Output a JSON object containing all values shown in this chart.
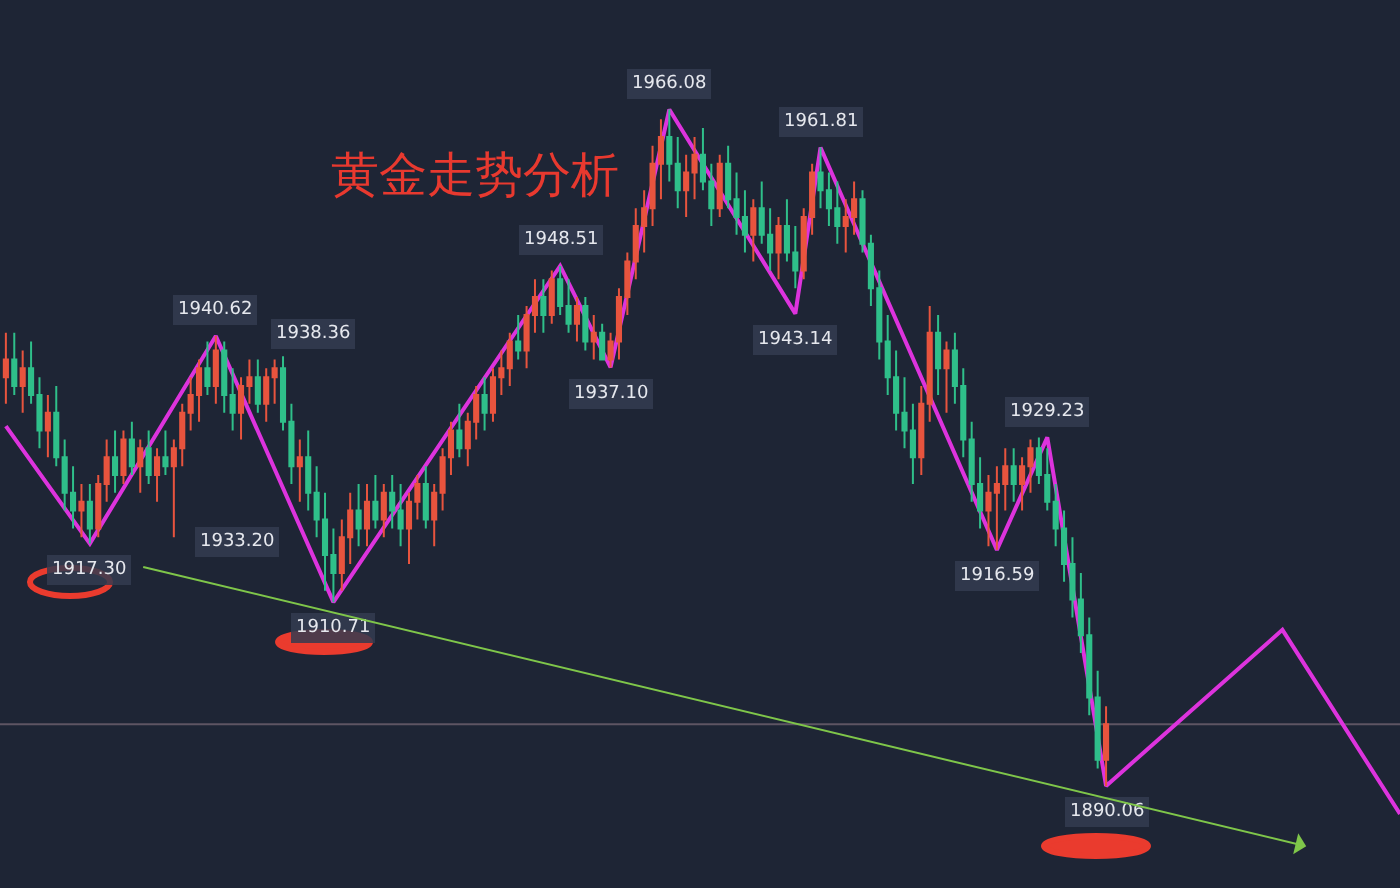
{
  "chart_data": {
    "type": "candlestick",
    "title": "黄金走势分析",
    "categories": [
      null,
      null,
      null,
      null,
      null,
      null,
      null,
      null,
      null,
      null,
      null,
      null,
      null,
      null,
      null,
      null,
      null,
      null,
      null,
      null,
      null,
      null,
      null,
      null,
      null,
      null,
      null,
      null,
      null,
      null,
      null,
      null,
      null,
      null,
      null,
      null,
      null,
      null,
      null,
      null,
      null,
      null,
      null,
      null,
      null,
      null,
      null,
      null,
      null,
      null,
      null,
      null,
      null,
      null,
      null,
      null,
      null,
      null,
      null,
      null,
      null,
      null,
      null,
      null,
      null,
      null,
      null,
      null,
      null,
      null,
      null,
      null,
      null,
      null,
      null,
      null,
      null,
      null,
      null,
      null,
      null,
      null,
      null,
      null,
      null,
      null,
      null,
      null,
      null,
      null,
      null,
      null,
      null,
      null,
      null,
      null,
      null,
      null,
      null,
      null,
      null,
      null,
      null,
      null,
      null,
      null,
      null,
      null,
      null,
      null,
      null,
      null,
      null,
      null,
      null,
      null,
      null,
      null,
      null,
      null,
      null,
      null,
      null,
      null,
      null,
      null,
      null,
      null,
      null,
      null,
      null,
      null,
      null,
      null,
      null,
      null,
      null,
      null,
      null,
      null,
      null,
      null,
      null,
      null,
      null,
      null,
      null,
      null,
      null,
      null,
      null,
      null,
      null,
      null,
      null,
      null,
      null,
      null,
      null,
      null,
      null,
      null,
      null,
      null,
      null,
      null,
      null
    ],
    "ohlc": [
      [
        1936,
        1941,
        1933,
        1938
      ],
      [
        1938,
        1941,
        1934,
        1935
      ],
      [
        1935,
        1939,
        1932,
        1937
      ],
      [
        1937,
        1940,
        1933,
        1934
      ],
      [
        1934,
        1936,
        1928,
        1930
      ],
      [
        1930,
        1934,
        1927,
        1932
      ],
      [
        1932,
        1935,
        1926,
        1927
      ],
      [
        1927,
        1929,
        1921,
        1923
      ],
      [
        1923,
        1926,
        1919,
        1921
      ],
      [
        1921,
        1924,
        1918,
        1922
      ],
      [
        1922,
        1924,
        1917.3,
        1919
      ],
      [
        1919,
        1925,
        1918,
        1924
      ],
      [
        1924,
        1929,
        1922,
        1927
      ],
      [
        1927,
        1930,
        1923,
        1925
      ],
      [
        1925,
        1930,
        1924,
        1929
      ],
      [
        1929,
        1931,
        1925,
        1926
      ],
      [
        1926,
        1929,
        1923,
        1928
      ],
      [
        1928,
        1930,
        1924,
        1925
      ],
      [
        1925,
        1928,
        1922,
        1927
      ],
      [
        1927,
        1930,
        1925,
        1926
      ],
      [
        1926,
        1929,
        1918,
        1928
      ],
      [
        1928,
        1933,
        1926,
        1932
      ],
      [
        1932,
        1936,
        1930,
        1934
      ],
      [
        1934,
        1938,
        1931,
        1937
      ],
      [
        1937,
        1940,
        1934,
        1935
      ],
      [
        1935,
        1940.62,
        1933,
        1939
      ],
      [
        1939,
        1940,
        1932,
        1934
      ],
      [
        1934,
        1937,
        1930,
        1932
      ],
      [
        1932,
        1936,
        1929,
        1935
      ],
      [
        1935,
        1938,
        1933,
        1936
      ],
      [
        1936,
        1938,
        1932,
        1933
      ],
      [
        1933,
        1937,
        1931,
        1936
      ],
      [
        1936,
        1938,
        1933,
        1937
      ],
      [
        1937,
        1938.36,
        1930,
        1931
      ],
      [
        1931,
        1933,
        1924,
        1926
      ],
      [
        1926,
        1929,
        1922,
        1927
      ],
      [
        1927,
        1930,
        1921,
        1923
      ],
      [
        1923,
        1926,
        1918,
        1920
      ],
      [
        1920,
        1923,
        1912,
        1916
      ],
      [
        1916,
        1919,
        1910.71,
        1914
      ],
      [
        1914,
        1920,
        1912,
        1918
      ],
      [
        1918,
        1923,
        1915,
        1921
      ],
      [
        1921,
        1924,
        1917,
        1919
      ],
      [
        1919,
        1924,
        1917,
        1922
      ],
      [
        1922,
        1925,
        1919,
        1920
      ],
      [
        1920,
        1924,
        1918,
        1923
      ],
      [
        1923,
        1925,
        1919,
        1921
      ],
      [
        1921,
        1924,
        1917,
        1919
      ],
      [
        1919,
        1923,
        1915,
        1922
      ],
      [
        1922,
        1925,
        1920,
        1924
      ],
      [
        1924,
        1926,
        1919,
        1920
      ],
      [
        1920,
        1924,
        1917,
        1923
      ],
      [
        1923,
        1928,
        1921,
        1927
      ],
      [
        1927,
        1931,
        1925,
        1930
      ],
      [
        1930,
        1933,
        1927,
        1928
      ],
      [
        1928,
        1932,
        1926,
        1931
      ],
      [
        1931,
        1935,
        1929,
        1934
      ],
      [
        1934,
        1936,
        1930,
        1932
      ],
      [
        1932,
        1937,
        1931,
        1936
      ],
      [
        1936,
        1939,
        1934,
        1937
      ],
      [
        1937,
        1941,
        1935,
        1940
      ],
      [
        1940,
        1943,
        1938,
        1939
      ],
      [
        1939,
        1944,
        1937,
        1943
      ],
      [
        1943,
        1947,
        1941,
        1945
      ],
      [
        1945,
        1947,
        1941,
        1943
      ],
      [
        1943,
        1948,
        1942,
        1947
      ],
      [
        1947,
        1948.51,
        1943,
        1944
      ],
      [
        1944,
        1947,
        1941,
        1942
      ],
      [
        1942,
        1945,
        1940,
        1944
      ],
      [
        1944,
        1945,
        1939,
        1940
      ],
      [
        1940,
        1943,
        1938,
        1941
      ],
      [
        1941,
        1942,
        1938,
        1938
      ],
      [
        1938,
        1941,
        1937.1,
        1940
      ],
      [
        1940,
        1946,
        1938,
        1945
      ],
      [
        1945,
        1950,
        1943,
        1949
      ],
      [
        1949,
        1955,
        1947,
        1953
      ],
      [
        1953,
        1957,
        1950,
        1955
      ],
      [
        1955,
        1962,
        1953,
        1960
      ],
      [
        1960,
        1965,
        1956,
        1963
      ],
      [
        1963,
        1966.08,
        1958,
        1960
      ],
      [
        1960,
        1963,
        1955,
        1957
      ],
      [
        1957,
        1961,
        1954,
        1959
      ],
      [
        1959,
        1963,
        1956,
        1961
      ],
      [
        1961,
        1964,
        1957,
        1958
      ],
      [
        1958,
        1960,
        1953,
        1955
      ],
      [
        1955,
        1961,
        1954,
        1960
      ],
      [
        1960,
        1962,
        1955,
        1956
      ],
      [
        1956,
        1959,
        1952,
        1954
      ],
      [
        1954,
        1957,
        1950,
        1952
      ],
      [
        1952,
        1956,
        1949,
        1955
      ],
      [
        1955,
        1958,
        1951,
        1952
      ],
      [
        1952,
        1955,
        1948,
        1950
      ],
      [
        1950,
        1954,
        1947,
        1953
      ],
      [
        1953,
        1956,
        1949,
        1950
      ],
      [
        1950,
        1953,
        1946,
        1948
      ],
      [
        1948,
        1955,
        1947,
        1954
      ],
      [
        1954,
        1960,
        1952,
        1959
      ],
      [
        1959,
        1961.81,
        1955,
        1957
      ],
      [
        1957,
        1959,
        1953,
        1955
      ],
      [
        1955,
        1958,
        1951,
        1953
      ],
      [
        1953,
        1956,
        1950,
        1954
      ],
      [
        1954,
        1958,
        1952,
        1956
      ],
      [
        1956,
        1957,
        1950,
        1951
      ],
      [
        1951,
        1952,
        1944,
        1946
      ],
      [
        1946,
        1948,
        1938,
        1940
      ],
      [
        1940,
        1943,
        1934,
        1936
      ],
      [
        1936,
        1939,
        1930,
        1932
      ],
      [
        1932,
        1936,
        1928,
        1930
      ],
      [
        1930,
        1933,
        1924,
        1927
      ],
      [
        1927,
        1935,
        1925,
        1933
      ],
      [
        1933,
        1944,
        1931,
        1941
      ],
      [
        1941,
        1943,
        1934,
        1937
      ],
      [
        1937,
        1940,
        1932,
        1939
      ],
      [
        1939,
        1941,
        1933,
        1935
      ],
      [
        1935,
        1937,
        1927,
        1929
      ],
      [
        1929,
        1931,
        1922,
        1924
      ],
      [
        1924,
        1927,
        1919,
        1921
      ],
      [
        1921,
        1925,
        1917,
        1923
      ],
      [
        1923,
        1926,
        1916.59,
        1924
      ],
      [
        1924,
        1928,
        1921,
        1926
      ],
      [
        1926,
        1928,
        1922,
        1924
      ],
      [
        1924,
        1927,
        1921,
        1926
      ],
      [
        1926,
        1929,
        1923,
        1928
      ],
      [
        1928,
        1929.23,
        1924,
        1925
      ],
      [
        1925,
        1928,
        1921,
        1922
      ],
      [
        1922,
        1924,
        1917,
        1919
      ],
      [
        1919,
        1921,
        1913,
        1915
      ],
      [
        1915,
        1918,
        1909,
        1911
      ],
      [
        1911,
        1914,
        1905,
        1907
      ],
      [
        1907,
        1909,
        1898,
        1900
      ],
      [
        1900,
        1903,
        1892,
        1893
      ],
      [
        1893,
        1899,
        1890.06,
        1897
      ],
      null,
      null,
      null,
      null,
      null,
      null,
      null,
      null,
      null,
      null,
      null,
      null,
      null,
      null,
      null,
      null,
      null,
      null,
      null,
      null,
      null,
      null,
      null,
      null,
      null,
      null,
      null,
      null,
      null,
      null,
      null,
      null,
      null,
      null,
      null
    ],
    "colors": [
      "#e8543e",
      "#2fbf8a",
      "#e8543e",
      "#2fbf8a",
      "#2fbf8a",
      "#e8543e",
      "#2fbf8a",
      "#2fbf8a",
      "#2fbf8a",
      "#e8543e",
      "#2fbf8a",
      "#e8543e",
      "#e8543e",
      "#2fbf8a",
      "#e8543e",
      "#2fbf8a",
      "#e8543e",
      "#2fbf8a",
      "#e8543e",
      "#2fbf8a",
      "#e8543e",
      "#e8543e",
      "#e8543e",
      "#e8543e",
      "#2fbf8a",
      "#e8543e",
      "#2fbf8a",
      "#2fbf8a",
      "#e8543e",
      "#e8543e",
      "#2fbf8a",
      "#e8543e",
      "#e8543e",
      "#2fbf8a",
      "#2fbf8a",
      "#e8543e",
      "#2fbf8a",
      "#2fbf8a",
      "#2fbf8a",
      "#2fbf8a",
      "#e8543e",
      "#e8543e",
      "#2fbf8a",
      "#e8543e",
      "#2fbf8a",
      "#e8543e",
      "#2fbf8a",
      "#2fbf8a",
      "#e8543e",
      "#e8543e",
      "#2fbf8a",
      "#e8543e",
      "#e8543e",
      "#e8543e",
      "#2fbf8a",
      "#e8543e",
      "#e8543e",
      "#2fbf8a",
      "#e8543e",
      "#e8543e",
      "#e8543e",
      "#2fbf8a",
      "#e8543e",
      "#e8543e",
      "#2fbf8a",
      "#e8543e",
      "#2fbf8a",
      "#2fbf8a",
      "#e8543e",
      "#2fbf8a",
      "#e8543e",
      "#2fbf8a",
      "#e8543e",
      "#e8543e",
      "#e8543e",
      "#e8543e",
      "#e8543e",
      "#e8543e",
      "#e8543e",
      "#2fbf8a",
      "#2fbf8a",
      "#e8543e",
      "#e8543e",
      "#2fbf8a",
      "#2fbf8a",
      "#e8543e",
      "#2fbf8a",
      "#2fbf8a",
      "#2fbf8a",
      "#e8543e",
      "#2fbf8a",
      "#2fbf8a",
      "#e8543e",
      "#2fbf8a",
      "#2fbf8a",
      "#e8543e",
      "#e8543e",
      "#2fbf8a",
      "#2fbf8a",
      "#2fbf8a",
      "#e8543e",
      "#e8543e",
      "#2fbf8a",
      "#2fbf8a",
      "#2fbf8a",
      "#2fbf8a",
      "#2fbf8a",
      "#2fbf8a",
      "#2fbf8a",
      "#e8543e",
      "#e8543e",
      "#2fbf8a",
      "#e8543e",
      "#2fbf8a",
      "#2fbf8a",
      "#2fbf8a",
      "#2fbf8a",
      "#e8543e",
      "#e8543e",
      "#e8543e",
      "#2fbf8a",
      "#e8543e",
      "#e8543e",
      "#2fbf8a",
      "#2fbf8a",
      "#2fbf8a",
      "#2fbf8a",
      "#2fbf8a",
      "#2fbf8a",
      "#2fbf8a",
      "#2fbf8a",
      "#e8543e",
      null,
      null,
      null,
      null,
      null,
      null,
      null,
      null,
      null,
      null,
      null,
      null,
      null,
      null,
      null,
      null,
      null,
      null,
      null,
      null,
      null,
      null,
      null,
      null,
      null,
      null,
      null,
      null,
      null,
      null,
      null,
      null,
      null,
      null,
      null
    ],
    "series": [
      {
        "type": "line",
        "color": "#dd33dd",
        "values": [
          1930.5,
          null,
          null,
          null,
          null,
          null,
          null,
          null,
          null,
          null,
          1917.3,
          null,
          null,
          null,
          null,
          null,
          null,
          null,
          null,
          null,
          null,
          null,
          null,
          null,
          null,
          1940.62,
          null,
          null,
          null,
          null,
          null,
          null,
          null,
          null,
          null,
          null,
          null,
          null,
          null,
          1910.71,
          null,
          null,
          null,
          null,
          null,
          null,
          null,
          null,
          null,
          null,
          null,
          null,
          null,
          null,
          null,
          null,
          null,
          null,
          null,
          null,
          null,
          null,
          null,
          null,
          null,
          null,
          1948.51,
          null,
          null,
          null,
          null,
          null,
          1937.1,
          null,
          null,
          null,
          null,
          null,
          null,
          1966.08,
          null,
          null,
          null,
          null,
          null,
          null,
          null,
          null,
          null,
          null,
          null,
          null,
          null,
          null,
          1943.14,
          null,
          null,
          1961.81,
          null,
          null,
          null,
          null,
          null,
          null,
          null,
          null,
          null,
          null,
          null,
          null,
          null,
          null,
          null,
          null,
          null,
          null,
          null,
          null,
          1916.59,
          null,
          null,
          null,
          null,
          null,
          1929.23,
          null,
          null,
          null,
          null,
          null,
          null,
          1890.06,
          null,
          null,
          null,
          null,
          null,
          null,
          null,
          null,
          null,
          null,
          null,
          null,
          null,
          null,
          null,
          null,
          null,
          null,
          null,
          null,
          1907.6,
          null,
          null,
          null,
          null,
          null,
          null,
          null,
          null,
          null,
          null,
          null,
          null,
          null,
          1886.9
        ],
        "value_labels": [
          null,
          null,
          null,
          null,
          null,
          null,
          null,
          null,
          null,
          null,
          "1917.30",
          null,
          null,
          null,
          null,
          null,
          null,
          null,
          null,
          null,
          null,
          null,
          null,
          null,
          null,
          "1940.62",
          null,
          null,
          null,
          null,
          null,
          null,
          null,
          null,
          null,
          null,
          null,
          null,
          null,
          "1910.71",
          null,
          null,
          null,
          null,
          null,
          null,
          null,
          null,
          null,
          null,
          null,
          null,
          null,
          null,
          null,
          null,
          null,
          null,
          null,
          null,
          null,
          null,
          null,
          null,
          null,
          null,
          "1948.51",
          null,
          null,
          null,
          null,
          null,
          "1937.10",
          null,
          null,
          null,
          null,
          null,
          null,
          "1966.08",
          null,
          null,
          null,
          null,
          null,
          null,
          null,
          null,
          null,
          null,
          null,
          null,
          null,
          null,
          "1943.14",
          null,
          null,
          "1961.81",
          null,
          null,
          null,
          null,
          null,
          null,
          null,
          null,
          null,
          null,
          null,
          null,
          null,
          null,
          null,
          null,
          null,
          null,
          null,
          null,
          "1916.59",
          null,
          null,
          null,
          null,
          null,
          "1929.23",
          null,
          null,
          null,
          null,
          null,
          null,
          "1890.06",
          null,
          null,
          null,
          null,
          null,
          null,
          null,
          null,
          null,
          null,
          null,
          null,
          null,
          null,
          null,
          null,
          null,
          null,
          null,
          null,
          null,
          null,
          null,
          null,
          null,
          null,
          null,
          null,
          null,
          null,
          null,
          null,
          null,
          null,
          null
        ]
      }
    ],
    "annotations": [
      "1938.36",
      "1933.20"
    ],
    "ref_lines": [
      {
        "axis": "y",
        "value": 1897,
        "color": "#5e5563"
      }
    ],
    "tick_labels": false
  }
}
